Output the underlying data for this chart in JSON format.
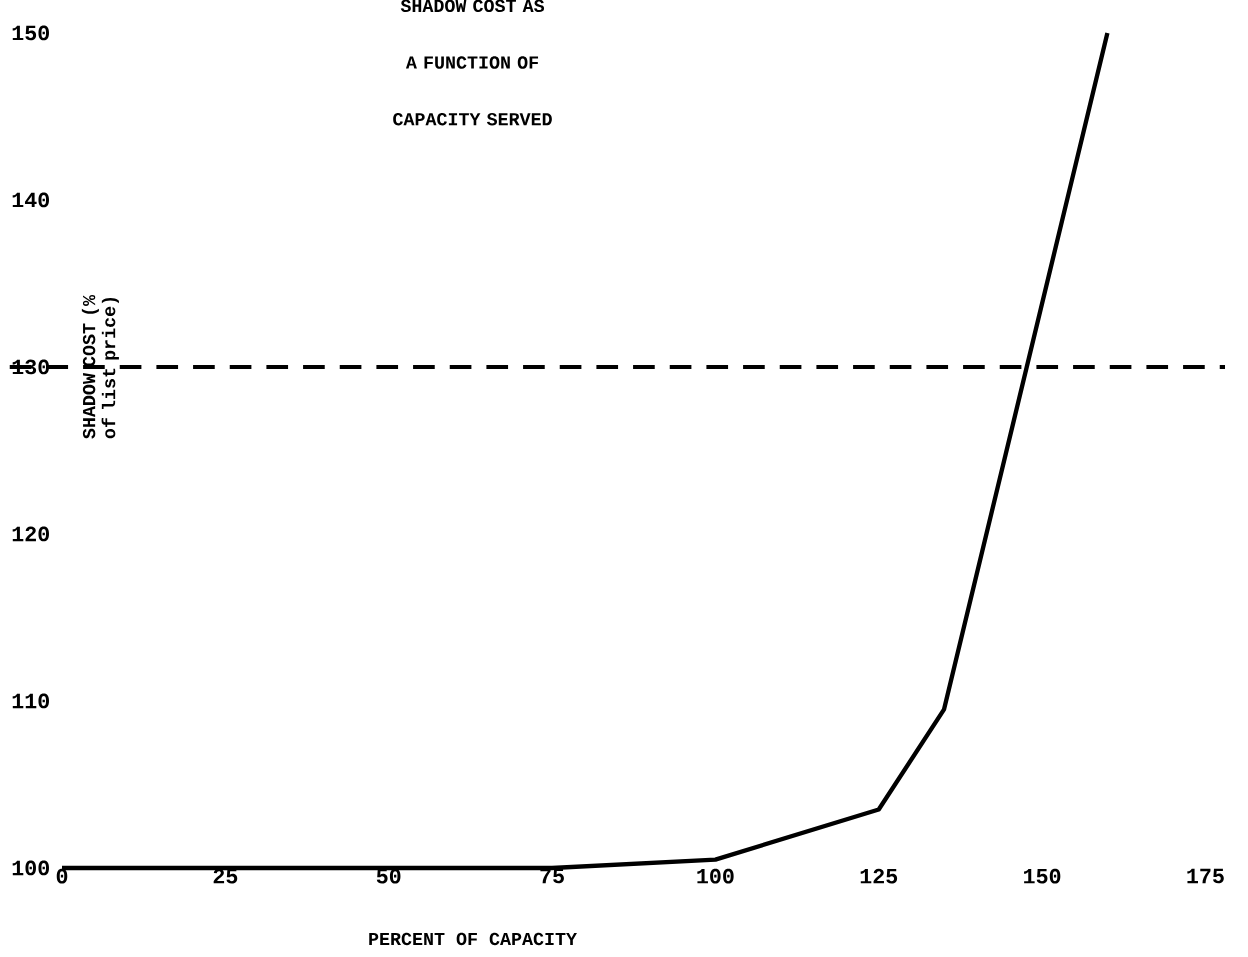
{
  "chart_data": {
    "type": "line",
    "title": "SHADOW COST AS A FUNCTION OF CAPACITY SERVED",
    "xlabel": "PERCENT OF CAPACITY",
    "ylabel": "SHADOW COST (% of list price)",
    "x": [
      0,
      75,
      100,
      125,
      135,
      160
    ],
    "values": [
      100,
      100,
      100.5,
      103.5,
      109.5,
      150
    ],
    "color": "#000000",
    "xlim": [
      0,
      178
    ],
    "ylim": [
      100,
      150
    ],
    "xticks": [
      0,
      25,
      50,
      75,
      100,
      125,
      150,
      175
    ],
    "yticks": [
      100,
      110,
      120,
      130,
      140,
      150
    ],
    "ref_lines": [
      {
        "axis": "y",
        "value": 130,
        "line_style": "dashed",
        "color": "#000000"
      }
    ]
  }
}
